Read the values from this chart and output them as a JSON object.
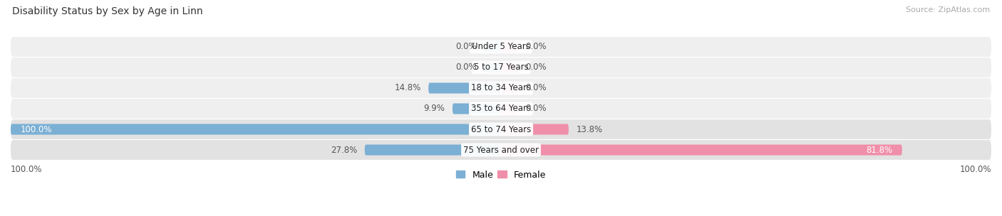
{
  "title": "Disability Status by Sex by Age in Linn",
  "source": "Source: ZipAtlas.com",
  "categories": [
    "Under 5 Years",
    "5 to 17 Years",
    "18 to 34 Years",
    "35 to 64 Years",
    "65 to 74 Years",
    "75 Years and over"
  ],
  "male_values": [
    0.0,
    0.0,
    14.8,
    9.9,
    100.0,
    27.8
  ],
  "female_values": [
    0.0,
    0.0,
    0.0,
    0.0,
    13.8,
    81.8
  ],
  "male_color": "#7bafd4",
  "female_color": "#f08faa",
  "row_bg_light": "#efefef",
  "row_bg_dark": "#e2e2e2",
  "label_color_dark": "#555555",
  "label_color_white": "#ffffff",
  "max_value": 100.0,
  "bar_height": 0.52,
  "figsize": [
    14.06,
    3.04
  ],
  "dpi": 100,
  "title_fontsize": 10,
  "source_fontsize": 8,
  "label_fontsize": 8.5,
  "cat_fontsize": 8.5
}
